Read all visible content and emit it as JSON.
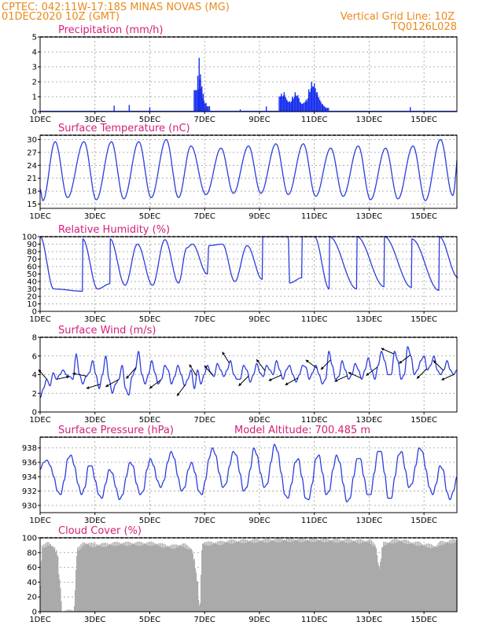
{
  "header": {
    "line1": "CPTEC:   042:11W-17:18S   MINAS NOVAS (MG)",
    "line2": "01DEC2020 10Z (GMT)",
    "grid_note": "Vertical Grid Line: 10Z",
    "model_code": "TQ0126L028"
  },
  "colors": {
    "series": "#2c3edc",
    "bars": "#1830ee",
    "cloud": "#aaaaaa",
    "header": "#e88a1a",
    "title": "#d4207a"
  },
  "chart_data": [
    {
      "id": "precip",
      "type": "bar",
      "title": "Precipitation (mm/h)",
      "ylim": [
        0,
        5
      ],
      "yticks": [
        0,
        1,
        2,
        3,
        4,
        5
      ],
      "x_day_start": 1,
      "x_day_end": 16,
      "x_tick_labels": [
        "1DEC",
        "3DEC",
        "5DEC",
        "7DEC",
        "9DEC",
        "11DEC",
        "13DEC",
        "15DEC"
      ],
      "grid": true,
      "peaks": [
        [
          3.7,
          0.4
        ],
        [
          4.25,
          0.45
        ],
        [
          5.0,
          0.3
        ],
        [
          6.75,
          2.4
        ],
        [
          6.8,
          3.6
        ],
        [
          6.85,
          2.5
        ],
        [
          6.9,
          1.7
        ],
        [
          6.95,
          1.2
        ],
        [
          7.05,
          0.6
        ],
        [
          8.3,
          0.15
        ],
        [
          9.25,
          0.35
        ],
        [
          9.8,
          1.2
        ],
        [
          9.9,
          1.3
        ],
        [
          10.0,
          0.8
        ],
        [
          10.1,
          0.7
        ],
        [
          10.2,
          1.0
        ],
        [
          10.3,
          1.3
        ],
        [
          10.4,
          1.1
        ],
        [
          10.5,
          0.6
        ],
        [
          10.7,
          0.8
        ],
        [
          10.8,
          1.5
        ],
        [
          10.9,
          2.0
        ],
        [
          11.0,
          1.9
        ],
        [
          11.1,
          1.3
        ],
        [
          11.2,
          0.8
        ],
        [
          11.3,
          0.5
        ],
        [
          11.4,
          0.3
        ],
        [
          14.5,
          0.3
        ]
      ]
    },
    {
      "id": "temp",
      "type": "line",
      "title": "Surface Temperature (nC)",
      "ylim": [
        14,
        31
      ],
      "yticks": [
        15,
        18,
        21,
        24,
        27,
        30
      ],
      "x_day_start": 1,
      "x_day_end": 16,
      "x_tick_labels": [
        "1DEC",
        "3DEC",
        "5DEC",
        "7DEC",
        "9DEC",
        "11DEC",
        "13DEC",
        "15DEC"
      ],
      "grid": true,
      "minima": [
        [
          1.1,
          15.8
        ],
        [
          2.0,
          16.5
        ],
        [
          3.05,
          16.0
        ],
        [
          4.05,
          16.2
        ],
        [
          5.05,
          16.5
        ],
        [
          6.05,
          16.5
        ],
        [
          7.05,
          17.2
        ],
        [
          8.05,
          17.5
        ],
        [
          9.05,
          17.5
        ],
        [
          10.05,
          17.2
        ],
        [
          11.05,
          16.8
        ],
        [
          12.05,
          16.8
        ],
        [
          13.05,
          16.0
        ],
        [
          14.05,
          16.2
        ],
        [
          15.05,
          15.8
        ],
        [
          16.05,
          17.0
        ]
      ],
      "maxima": [
        [
          1.55,
          29.5
        ],
        [
          2.6,
          29.5
        ],
        [
          3.6,
          29.5
        ],
        [
          4.6,
          29.5
        ],
        [
          5.6,
          30.0
        ],
        [
          6.5,
          28.5
        ],
        [
          7.6,
          28.0
        ],
        [
          8.6,
          28.5
        ],
        [
          9.6,
          29.0
        ],
        [
          10.6,
          29.0
        ],
        [
          11.6,
          28.0
        ],
        [
          12.6,
          28.5
        ],
        [
          13.6,
          28.0
        ],
        [
          14.6,
          28.5
        ],
        [
          15.6,
          30.0
        ],
        [
          16.3,
          29.5
        ]
      ],
      "end_value": 25.0
    },
    {
      "id": "rh",
      "type": "line",
      "title": "Relative Humidity (%)",
      "ylim": [
        0,
        100
      ],
      "yticks": [
        0,
        10,
        20,
        30,
        40,
        50,
        60,
        70,
        80,
        90,
        100
      ],
      "x_day_start": 1,
      "x_day_end": 16,
      "x_tick_labels": [
        "1DEC",
        "3DEC",
        "5DEC",
        "7DEC",
        "9DEC",
        "11DEC",
        "13DEC",
        "15DEC"
      ],
      "grid": true,
      "maxima": [
        [
          1.0,
          100
        ],
        [
          2.55,
          97
        ],
        [
          3.55,
          97
        ],
        [
          4.55,
          90
        ],
        [
          5.55,
          96
        ],
        [
          6.35,
          85
        ],
        [
          6.55,
          90
        ],
        [
          7.15,
          88
        ],
        [
          7.65,
          90
        ],
        [
          8.55,
          88
        ],
        [
          9.1,
          100
        ],
        [
          9.55,
          100
        ],
        [
          10.05,
          100
        ],
        [
          10.55,
          100
        ],
        [
          11.0,
          100
        ],
        [
          11.55,
          100
        ],
        [
          12.55,
          100
        ],
        [
          13.55,
          100
        ],
        [
          14.55,
          97
        ],
        [
          15.55,
          100
        ]
      ],
      "minima": [
        [
          1.5,
          30
        ],
        [
          2.55,
          27
        ],
        [
          3.1,
          30
        ],
        [
          3.55,
          37
        ],
        [
          4.1,
          35
        ],
        [
          5.1,
          35
        ],
        [
          6.05,
          38
        ],
        [
          7.1,
          50
        ],
        [
          8.1,
          40
        ],
        [
          9.1,
          43
        ],
        [
          10.1,
          38
        ],
        [
          10.55,
          45
        ],
        [
          11.55,
          30
        ],
        [
          12.55,
          30
        ],
        [
          13.55,
          33
        ],
        [
          14.55,
          32
        ],
        [
          15.55,
          28
        ],
        [
          16.25,
          45
        ]
      ]
    },
    {
      "id": "wind",
      "type": "line",
      "title": "Surface Wind (m/s)",
      "ylim": [
        0,
        8
      ],
      "yticks": [
        0,
        2,
        4,
        6,
        8
      ],
      "x_day_start": 1,
      "x_day_end": 16,
      "x_tick_labels": [
        "1DEC",
        "3DEC",
        "5DEC",
        "7DEC",
        "9DEC",
        "11DEC",
        "13DEC",
        "15DEC"
      ],
      "grid": true,
      "values": [
        1.5,
        2.5,
        3.5,
        2.8,
        4.2,
        3.5,
        4.0,
        4.5,
        4.0,
        3.8,
        3.5,
        6.2,
        4.0,
        3.0,
        3.8,
        4.2,
        5.5,
        4.0,
        2.5,
        4.0,
        6.0,
        3.5,
        2.0,
        3.0,
        3.5,
        5.0,
        2.5,
        1.8,
        3.8,
        4.5,
        6.5,
        4.0,
        3.0,
        4.0,
        5.5,
        4.2,
        3.0,
        3.5,
        5.0,
        4.5,
        3.0,
        3.8,
        5.0,
        4.0,
        2.8,
        3.5,
        4.5,
        2.5,
        4.5,
        3.0,
        4.0,
        5.0,
        4.2,
        3.8,
        5.2,
        4.5,
        3.8,
        4.5,
        5.5,
        4.0,
        3.5,
        3.5,
        5.0,
        4.5,
        3.2,
        4.0,
        5.2,
        4.2,
        3.8,
        5.0,
        4.5,
        4.0,
        5.5,
        4.5,
        3.5,
        4.5,
        5.0,
        4.0,
        3.2,
        4.0,
        5.0,
        4.8,
        3.5,
        4.2,
        5.0,
        4.0,
        3.0,
        3.5,
        6.5,
        5.0,
        3.5,
        3.8,
        5.5,
        4.5,
        3.5,
        4.0,
        5.2,
        4.5,
        3.5,
        4.5,
        5.8,
        4.5,
        3.5,
        5.0,
        6.5,
        5.5,
        4.0,
        4.0,
        6.5,
        5.5,
        3.5,
        4.0,
        7.0,
        6.0,
        4.0,
        4.5,
        5.5,
        6.0,
        4.5,
        5.0,
        6.0,
        4.5,
        4.0,
        4.5,
        5.5,
        4.5,
        4.0,
        4.5
      ],
      "vectors": [
        [
          1.25,
          -0.6,
          0.7
        ],
        [
          1.6,
          0.9,
          0.2
        ],
        [
          2.7,
          -1.0,
          0.2
        ],
        [
          3.2,
          -1.0,
          -0.3
        ],
        [
          3.85,
          -0.9,
          -0.5
        ],
        [
          4.5,
          -0.7,
          -0.8
        ],
        [
          5.4,
          -0.8,
          -0.6
        ],
        [
          6.3,
          -0.6,
          -0.8
        ],
        [
          6.7,
          -0.5,
          0.8
        ],
        [
          7.3,
          -0.6,
          0.7
        ],
        [
          7.9,
          -0.5,
          0.8
        ],
        [
          8.6,
          -0.7,
          -0.7
        ],
        [
          9.2,
          -0.6,
          0.8
        ],
        [
          9.8,
          -0.9,
          -0.4
        ],
        [
          10.4,
          -0.9,
          -0.5
        ],
        [
          11.1,
          -0.8,
          0.6
        ],
        [
          11.6,
          -0.7,
          -0.7
        ],
        [
          12.2,
          -0.9,
          -0.4
        ],
        [
          12.7,
          -0.9,
          0.4
        ],
        [
          13.3,
          -0.8,
          -0.6
        ],
        [
          13.9,
          -0.9,
          0.4
        ],
        [
          14.5,
          -0.8,
          -0.6
        ],
        [
          15.1,
          -0.7,
          -0.7
        ],
        [
          15.7,
          -0.7,
          0.7
        ],
        [
          16.1,
          -0.9,
          -0.4
        ]
      ]
    },
    {
      "id": "pressure",
      "type": "line",
      "title": "Surface Pressure (hPa)",
      "annotation": "Model Altitude: 700.485  m",
      "ylim": [
        929,
        939.5
      ],
      "yticks": [
        930,
        932,
        934,
        936,
        938
      ],
      "x_day_start": 1,
      "x_day_end": 16,
      "x_tick_labels": [
        "1DEC",
        "3DEC",
        "5DEC",
        "7DEC",
        "9DEC",
        "11DEC",
        "13DEC",
        "15DEC"
      ],
      "grid": true,
      "values": [
        935.0,
        936.0,
        936.3,
        935.5,
        934.0,
        932.0,
        931.5,
        933.5,
        936.5,
        937.0,
        935.5,
        933.0,
        931.5,
        932.5,
        935.5,
        935.5,
        933.5,
        931.5,
        931.0,
        933.0,
        935.0,
        934.5,
        932.5,
        930.8,
        931.5,
        934.0,
        936.0,
        935.5,
        933.0,
        931.5,
        932.0,
        935.0,
        936.5,
        935.5,
        933.5,
        932.5,
        933.5,
        936.0,
        937.5,
        936.5,
        934.0,
        932.0,
        932.5,
        935.0,
        936.0,
        934.5,
        932.0,
        931.5,
        933.5,
        936.5,
        938.0,
        937.0,
        934.5,
        932.5,
        933.0,
        935.5,
        937.5,
        937.0,
        934.5,
        932.0,
        932.5,
        935.0,
        938.0,
        937.0,
        934.5,
        932.5,
        933.0,
        936.0,
        938.5,
        937.5,
        934.5,
        931.5,
        931.0,
        933.0,
        936.0,
        936.5,
        934.0,
        931.0,
        930.8,
        933.0,
        936.5,
        937.0,
        934.5,
        931.5,
        932.0,
        935.0,
        937.0,
        936.0,
        933.0,
        930.5,
        931.0,
        934.0,
        936.5,
        936.5,
        934.0,
        931.5,
        931.5,
        934.5,
        937.5,
        937.5,
        934.5,
        931.0,
        931.0,
        934.0,
        937.0,
        937.5,
        935.0,
        932.5,
        933.0,
        935.5,
        938.0,
        937.5,
        935.0,
        932.5,
        931.5,
        933.0,
        935.5,
        935.0,
        932.0,
        930.8,
        932.0,
        934.0
      ],
      "end_value": 934.0
    },
    {
      "id": "cloud",
      "type": "area",
      "title": "Cloud Cover (%)",
      "ylim": [
        0,
        100
      ],
      "yticks": [
        0,
        20,
        40,
        60,
        80,
        100
      ],
      "x_day_start": 1,
      "x_day_end": 16,
      "x_tick_labels": [
        "1DEC",
        "3DEC",
        "5DEC",
        "7DEC",
        "9DEC",
        "11DEC",
        "13DEC",
        "15DEC"
      ],
      "grid": true,
      "keypoints": [
        [
          1.0,
          35
        ],
        [
          1.05,
          88
        ],
        [
          1.3,
          92
        ],
        [
          1.45,
          88
        ],
        [
          1.6,
          80
        ],
        [
          1.7,
          40
        ],
        [
          1.78,
          0
        ],
        [
          2.2,
          0
        ],
        [
          2.35,
          85
        ],
        [
          2.6,
          92
        ],
        [
          3.0,
          90
        ],
        [
          4.0,
          92
        ],
        [
          5.0,
          92
        ],
        [
          5.8,
          88
        ],
        [
          6.2,
          90
        ],
        [
          6.5,
          85
        ],
        [
          6.6,
          70
        ],
        [
          6.7,
          45
        ],
        [
          6.8,
          5
        ],
        [
          6.9,
          92
        ],
        [
          7.5,
          93
        ],
        [
          8.0,
          95
        ],
        [
          9.0,
          96
        ],
        [
          10.0,
          97
        ],
        [
          11.0,
          97
        ],
        [
          12.0,
          96
        ],
        [
          13.0,
          95
        ],
        [
          13.2,
          90
        ],
        [
          13.35,
          60
        ],
        [
          13.5,
          92
        ],
        [
          14.0,
          96
        ],
        [
          14.8,
          92
        ],
        [
          15.0,
          90
        ],
        [
          15.4,
          88
        ],
        [
          15.6,
          93
        ],
        [
          16.2,
          96
        ]
      ]
    }
  ]
}
